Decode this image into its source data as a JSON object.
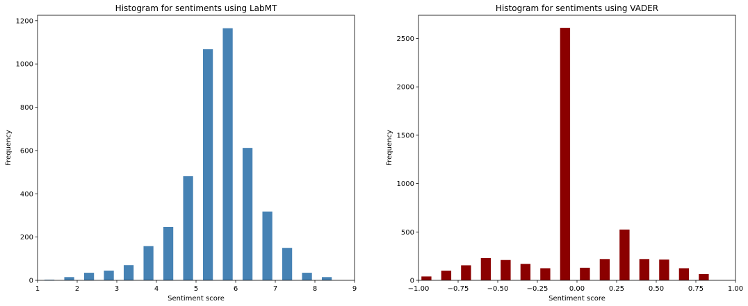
{
  "chart_data": [
    {
      "type": "bar",
      "title": "Histogram for sentiments using LabMT",
      "xlabel": "Sentiment score",
      "ylabel": "Frequency",
      "xlim": [
        1,
        9
      ],
      "ylim": [
        0,
        1225
      ],
      "xticks": [
        1,
        2,
        3,
        4,
        5,
        6,
        7,
        8,
        9
      ],
      "xtick_labels": [
        "1",
        "2",
        "3",
        "4",
        "5",
        "6",
        "7",
        "8",
        "9"
      ],
      "yticks": [
        0,
        200,
        400,
        600,
        800,
        1000,
        1200
      ],
      "ytick_labels": [
        "0",
        "200",
        "400",
        "600",
        "800",
        "1000",
        "1200"
      ],
      "bar_color": "#4682b4",
      "bar_width": 0.25,
      "bars": [
        {
          "x": 1.3,
          "value": 3
        },
        {
          "x": 1.8,
          "value": 15
        },
        {
          "x": 2.3,
          "value": 35
        },
        {
          "x": 2.8,
          "value": 45
        },
        {
          "x": 3.3,
          "value": 70
        },
        {
          "x": 3.8,
          "value": 158
        },
        {
          "x": 4.3,
          "value": 247
        },
        {
          "x": 4.8,
          "value": 481
        },
        {
          "x": 5.3,
          "value": 1068
        },
        {
          "x": 5.8,
          "value": 1165
        },
        {
          "x": 6.3,
          "value": 612
        },
        {
          "x": 6.8,
          "value": 318
        },
        {
          "x": 7.3,
          "value": 150
        },
        {
          "x": 7.8,
          "value": 35
        },
        {
          "x": 8.3,
          "value": 15
        }
      ],
      "grid": false,
      "legend": "none"
    },
    {
      "type": "bar",
      "title": "Histogram for sentiments using VADER",
      "xlabel": "Sentiment score",
      "ylabel": "Frequency",
      "xlim": [
        -1,
        1
      ],
      "ylim": [
        0,
        2740
      ],
      "xticks": [
        -1,
        -0.75,
        -0.5,
        -0.25,
        0,
        0.25,
        0.5,
        0.75,
        1
      ],
      "xtick_labels": [
        "−1.00",
        "−0.75",
        "−0.50",
        "−0.25",
        "0.00",
        "0.25",
        "0.50",
        "0.75",
        "1.00"
      ],
      "yticks": [
        0,
        500,
        1000,
        1500,
        2000,
        2500
      ],
      "ytick_labels": [
        "0",
        "500",
        "1000",
        "1500",
        "2000",
        "2500"
      ],
      "bar_color": "#8b0000",
      "bar_width": 0.063,
      "bars": [
        {
          "x": -0.95,
          "value": 40
        },
        {
          "x": -0.825,
          "value": 100
        },
        {
          "x": -0.7,
          "value": 155
        },
        {
          "x": -0.575,
          "value": 230
        },
        {
          "x": -0.45,
          "value": 210
        },
        {
          "x": -0.325,
          "value": 170
        },
        {
          "x": -0.2,
          "value": 125
        },
        {
          "x": -0.075,
          "value": 2610
        },
        {
          "x": 0.05,
          "value": 130
        },
        {
          "x": 0.175,
          "value": 220
        },
        {
          "x": 0.3,
          "value": 525
        },
        {
          "x": 0.425,
          "value": 220
        },
        {
          "x": 0.55,
          "value": 215
        },
        {
          "x": 0.675,
          "value": 125
        },
        {
          "x": 0.8,
          "value": 65
        }
      ],
      "grid": false,
      "legend": "none"
    }
  ]
}
